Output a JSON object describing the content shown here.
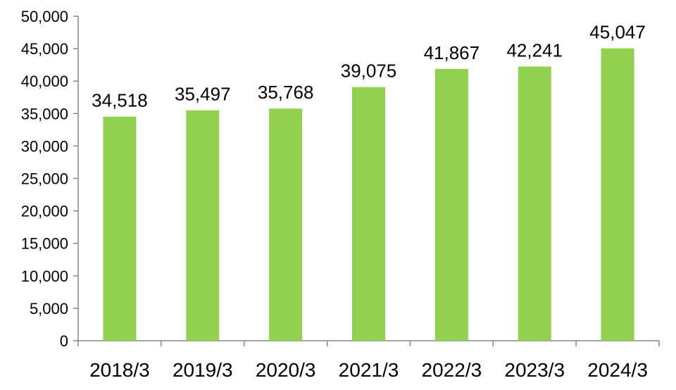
{
  "chart_data": {
    "type": "bar",
    "title": "",
    "xlabel": "",
    "ylabel": "",
    "categories": [
      "2018/3",
      "2019/3",
      "2020/3",
      "2021/3",
      "2022/3",
      "2023/3",
      "2024/3"
    ],
    "values": [
      34518,
      35497,
      35768,
      39075,
      41867,
      42241,
      45047
    ],
    "data_labels": [
      "34,518",
      "35,497",
      "35,768",
      "39,075",
      "41,867",
      "42,241",
      "45,047"
    ],
    "ylim": [
      0,
      50000
    ],
    "yticks": [
      0,
      5000,
      10000,
      15000,
      20000,
      25000,
      30000,
      35000,
      40000,
      45000,
      50000
    ],
    "ytick_labels": [
      "0",
      "5,000",
      "10,000",
      "15,000",
      "20,000",
      "25,000",
      "30,000",
      "35,000",
      "40,000",
      "45,000",
      "50,000"
    ],
    "grid": false,
    "legend": "none",
    "bar_color": "#92d050"
  }
}
